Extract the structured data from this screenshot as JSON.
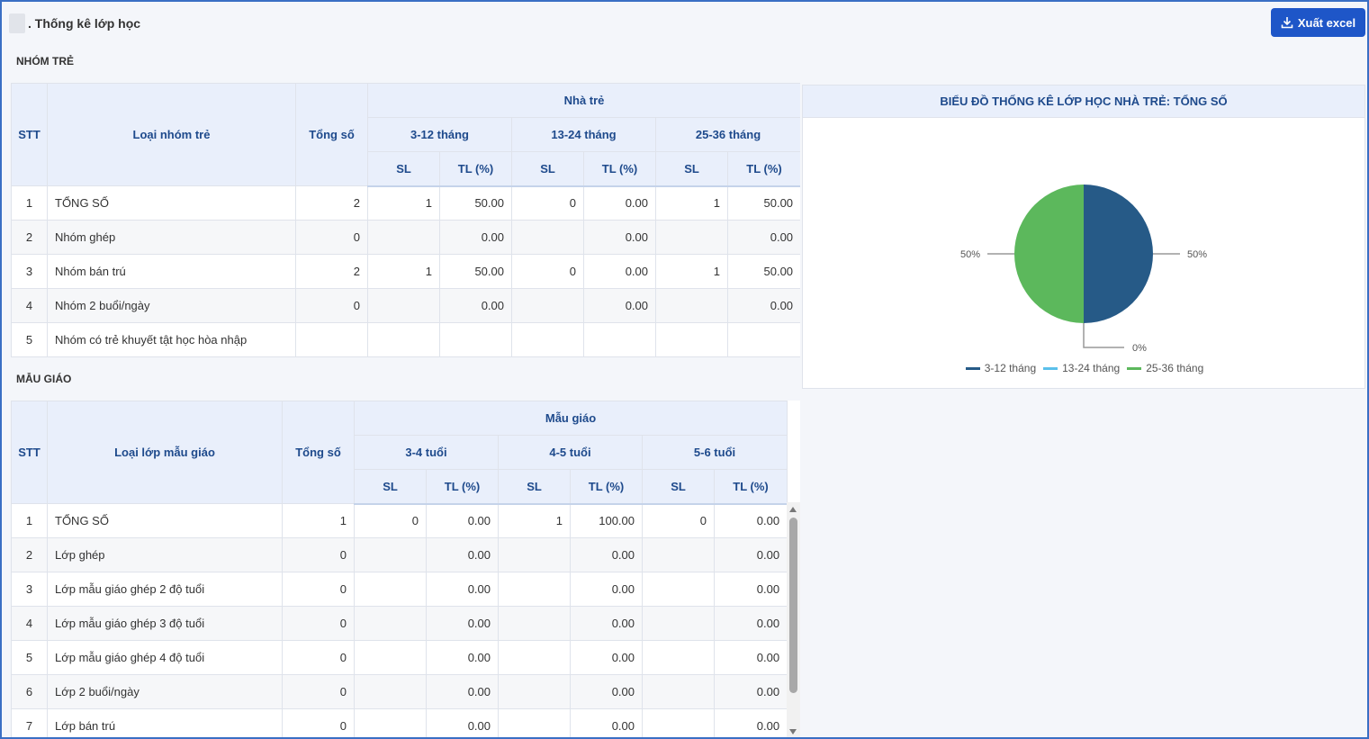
{
  "page": {
    "title": ". Thống kê lớp học",
    "export_label": "Xuất excel"
  },
  "colors": {
    "series": [
      "#265a87",
      "#5bc0eb",
      "#5cb85c"
    ],
    "accent": "#1e56c8",
    "header_bg": "#e9effb"
  },
  "nhom_tre": {
    "section_title": "NHÓM TRẺ",
    "headers": {
      "stt": "STT",
      "loai": "Loại nhóm trẻ",
      "tong": "Tổng số",
      "group": "Nhà trẻ",
      "age_groups": [
        "3-12 tháng",
        "13-24 tháng",
        "25-36 tháng"
      ],
      "sl": "SL",
      "tl": "TL (%)"
    },
    "rows": [
      {
        "stt": "1",
        "name": "TỔNG SỐ",
        "total": "2",
        "vals": [
          "1",
          "50.00",
          "0",
          "0.00",
          "1",
          "50.00"
        ]
      },
      {
        "stt": "2",
        "name": "Nhóm ghép",
        "total": "0",
        "vals": [
          "",
          "0.00",
          "",
          "0.00",
          "",
          "0.00"
        ]
      },
      {
        "stt": "3",
        "name": "Nhóm bán trú",
        "total": "2",
        "vals": [
          "1",
          "50.00",
          "0",
          "0.00",
          "1",
          "50.00"
        ]
      },
      {
        "stt": "4",
        "name": "Nhóm 2 buổi/ngày",
        "total": "0",
        "vals": [
          "",
          "0.00",
          "",
          "0.00",
          "",
          "0.00"
        ]
      },
      {
        "stt": "5",
        "name": "Nhóm có trẻ khuyết tật học hòa nhập",
        "total": "",
        "vals": [
          "",
          "",
          "",
          "",
          "",
          ""
        ]
      }
    ]
  },
  "mau_giao": {
    "section_title": "MẪU GIÁO",
    "headers": {
      "stt": "STT",
      "loai": "Loại lớp mẫu giáo",
      "tong": "Tổng số",
      "group": "Mẫu giáo",
      "age_groups": [
        "3-4 tuổi",
        "4-5 tuổi",
        "5-6 tuổi"
      ],
      "sl": "SL",
      "tl": "TL (%)"
    },
    "rows": [
      {
        "stt": "1",
        "name": "TỔNG SỐ",
        "total": "1",
        "vals": [
          "0",
          "0.00",
          "1",
          "100.00",
          "0",
          "0.00"
        ]
      },
      {
        "stt": "2",
        "name": "Lớp ghép",
        "total": "0",
        "vals": [
          "",
          "0.00",
          "",
          "0.00",
          "",
          "0.00"
        ]
      },
      {
        "stt": "3",
        "name": "Lớp mẫu giáo ghép 2 độ tuổi",
        "total": "0",
        "vals": [
          "",
          "0.00",
          "",
          "0.00",
          "",
          "0.00"
        ]
      },
      {
        "stt": "4",
        "name": "Lớp mẫu giáo ghép 3 độ tuổi",
        "total": "0",
        "vals": [
          "",
          "0.00",
          "",
          "0.00",
          "",
          "0.00"
        ]
      },
      {
        "stt": "5",
        "name": "Lớp mẫu giáo ghép 4 độ tuổi",
        "total": "0",
        "vals": [
          "",
          "0.00",
          "",
          "0.00",
          "",
          "0.00"
        ]
      },
      {
        "stt": "6",
        "name": "Lớp 2 buổi/ngày",
        "total": "0",
        "vals": [
          "",
          "0.00",
          "",
          "0.00",
          "",
          "0.00"
        ]
      },
      {
        "stt": "7",
        "name": "Lớp bán trú",
        "total": "0",
        "vals": [
          "",
          "0.00",
          "",
          "0.00",
          "",
          "0.00"
        ]
      }
    ]
  },
  "chart_data": {
    "type": "pie",
    "title": "BIỂU ĐỒ THỐNG KÊ LỚP HỌC NHÀ TRẺ: TỔNG SỐ",
    "categories": [
      "3-12 tháng",
      "13-24 tháng",
      "25-36 tháng"
    ],
    "values": [
      50,
      0,
      50
    ],
    "labels": [
      "50%",
      "0%",
      "50%"
    ],
    "colors": [
      "#265a87",
      "#5bc0eb",
      "#5cb85c"
    ],
    "legend_position": "bottom"
  }
}
